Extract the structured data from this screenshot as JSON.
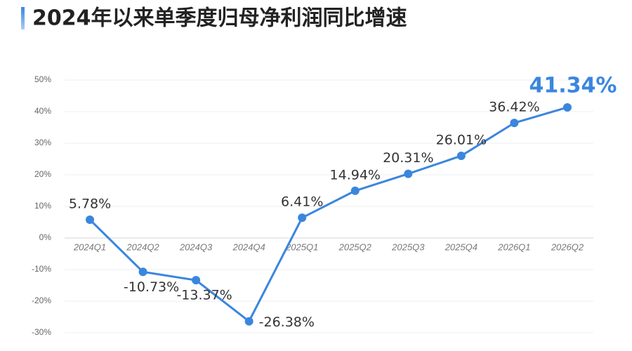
{
  "chart_data": {
    "type": "line",
    "title": "2024年以来单季度归母净利润同比增速",
    "categories": [
      "2024Q1",
      "2024Q2",
      "2024Q3",
      "2024Q4",
      "2025Q1",
      "2025Q2",
      "2025Q3",
      "2025Q4",
      "2026Q1",
      "2026Q2"
    ],
    "values": [
      5.78,
      -10.73,
      -13.37,
      -26.38,
      6.41,
      14.94,
      20.31,
      26.01,
      36.42,
      41.34
    ],
    "value_labels": [
      "5.78%",
      "-10.73%",
      "-13.37%",
      "-26.38%",
      "6.41%",
      "14.94%",
      "20.31%",
      "26.01%",
      "36.42%",
      "41.34%"
    ],
    "color": "#3a86de",
    "ylim": [
      -30,
      50
    ],
    "yticks": [
      {
        "value": -30,
        "label": "-30%"
      },
      {
        "value": -20,
        "label": "-20%"
      },
      {
        "value": -10,
        "label": "-10%"
      },
      {
        "value": 0,
        "label": "0%"
      },
      {
        "value": 10,
        "label": "10%"
      },
      {
        "value": 20,
        "label": "20%"
      },
      {
        "value": 30,
        "label": "30%"
      },
      {
        "value": 40,
        "label": "40%"
      },
      {
        "value": 50,
        "label": "50%"
      }
    ],
    "grid": true
  }
}
